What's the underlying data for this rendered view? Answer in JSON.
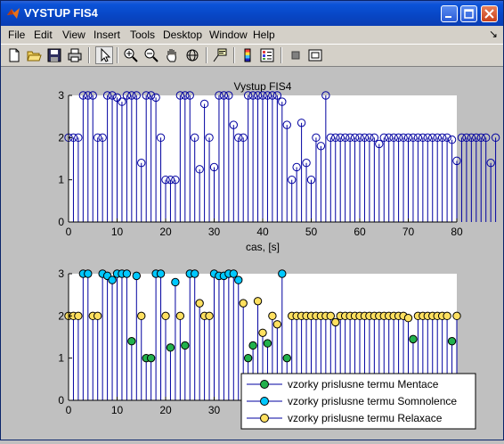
{
  "window": {
    "title": "VYSTUP FIS4"
  },
  "menu": {
    "items": [
      "File",
      "Edit",
      "View",
      "Insert",
      "Tools",
      "Desktop",
      "Window",
      "Help"
    ],
    "dock_arrow": "↘"
  },
  "toolbar": {
    "tools": [
      "new-file",
      "open-folder",
      "save",
      "print",
      "pointer",
      "zoom-in",
      "zoom-out",
      "pan",
      "rotate-3d",
      "data-cursor",
      "colorbar",
      "legend",
      "hide-plot-tools",
      "show-plot-tools"
    ]
  },
  "colors": {
    "stem": "#0000a0",
    "mentace": "#22b14c",
    "somnolence": "#00c8ff",
    "relaxace": "#ffe060"
  },
  "chart_data": [
    {
      "type": "stem",
      "title": "Vystup FIS4",
      "xlabel": "cas, [s]",
      "ylabel": "",
      "xlim": [
        0,
        80
      ],
      "ylim": [
        0,
        3
      ],
      "xticks": [
        "0",
        "10",
        "20",
        "30",
        "40",
        "50",
        "60",
        "70",
        "80"
      ],
      "yticks": [
        "0",
        "1",
        "2",
        "3"
      ],
      "series": [
        {
          "values": [
            2,
            2,
            2,
            3,
            3,
            3,
            2,
            2,
            3,
            3,
            2.95,
            2.85,
            3,
            3,
            3,
            1.4,
            3,
            3,
            2.95,
            2,
            1,
            1,
            1,
            3,
            3,
            3,
            2,
            1.25,
            2.8,
            2,
            1.3,
            3,
            3,
            3,
            2.3,
            2,
            2,
            3,
            3,
            3,
            3,
            3,
            3,
            3,
            2.85,
            2.3,
            1,
            1.3,
            2.35,
            1.4,
            1,
            2,
            1.8,
            3,
            2,
            2,
            2,
            2,
            2,
            2,
            2,
            2,
            2,
            2,
            1.85,
            2,
            2,
            2,
            2,
            2,
            2,
            2,
            2,
            2,
            2,
            2,
            2,
            2,
            2,
            1.95,
            1.45,
            2,
            2,
            2,
            2,
            2,
            2,
            1.4,
            2
          ]
        }
      ]
    },
    {
      "type": "stem",
      "title": "",
      "xlabel": "",
      "ylabel": "",
      "xlim": [
        0,
        80
      ],
      "ylim": [
        0,
        3
      ],
      "xticks": [
        "0",
        "10",
        "20",
        "30"
      ],
      "yticks": [
        "0",
        "1",
        "2",
        "3"
      ],
      "legend": {
        "placement": "bottom-right",
        "entries": [
          "vzorky prislusne termu Mentace",
          "vzorky prislusne termu Somnolence",
          "vzorky prislusne termu Relaxace"
        ]
      },
      "series": [
        {
          "name": "vzorky prislusne termu Mentace",
          "x": [
            13,
            16,
            17,
            21,
            24,
            37,
            38,
            41,
            45,
            71,
            79
          ],
          "values": [
            1.4,
            1,
            1,
            1.25,
            1.3,
            1,
            1.3,
            1.35,
            1,
            1.45,
            1.4
          ]
        },
        {
          "name": "vzorky prislusne termu Somnolence",
          "x": [
            3,
            4,
            7,
            8,
            9,
            10,
            11,
            12,
            14,
            18,
            19,
            22,
            25,
            26,
            30,
            31,
            32,
            33,
            34,
            35,
            44
          ],
          "values": [
            3,
            3,
            3,
            2.95,
            2.85,
            3,
            3,
            3,
            2.95,
            3,
            3,
            2.8,
            3,
            3,
            3,
            2.95,
            2.95,
            3,
            3,
            2.85,
            3
          ]
        },
        {
          "name": "vzorky prislusne termu Relaxace",
          "x": [
            0,
            1,
            2,
            5,
            6,
            15,
            20,
            23,
            27,
            28,
            29,
            36,
            39,
            40,
            42,
            43,
            46,
            47,
            48,
            49,
            50,
            51,
            52,
            53,
            54,
            55,
            56,
            57,
            58,
            59,
            60,
            61,
            62,
            63,
            64,
            65,
            66,
            67,
            68,
            69,
            70,
            72,
            73,
            74,
            75,
            76,
            77,
            78,
            80
          ],
          "values": [
            2,
            2,
            2,
            2,
            2,
            2,
            2,
            2,
            2.3,
            2,
            2,
            2.3,
            2.35,
            1.6,
            2,
            1.8,
            2,
            2,
            2,
            2,
            2,
            2,
            2,
            2,
            2,
            1.85,
            2,
            2,
            2,
            2,
            2,
            2,
            2,
            2,
            2,
            2,
            2,
            2,
            2,
            2,
            1.95,
            2,
            2,
            2,
            2,
            2,
            2,
            2,
            2
          ]
        }
      ]
    }
  ]
}
